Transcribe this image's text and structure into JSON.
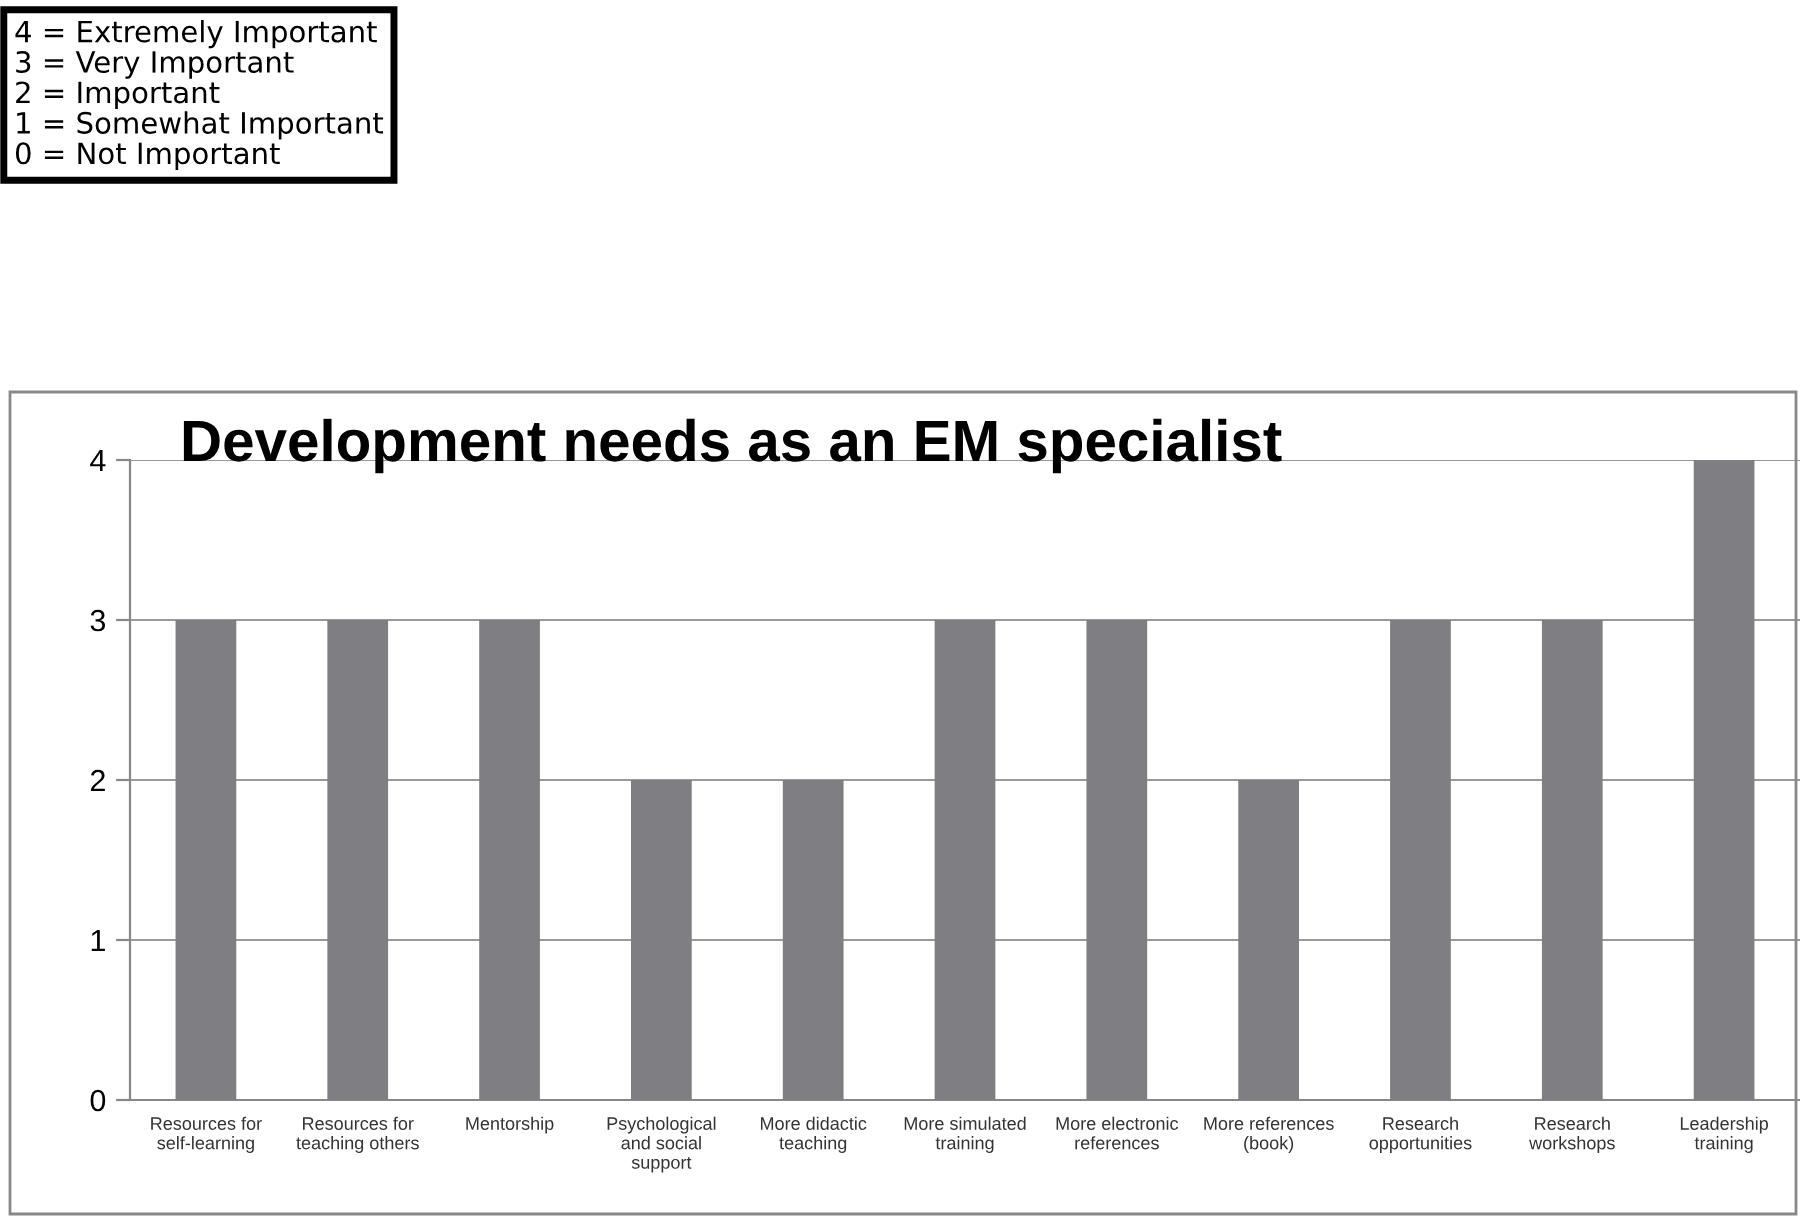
{
  "chart_data": {
    "type": "bar",
    "title": "Development needs as an EM specialist",
    "categories": [
      "Resources for\nself-learning",
      "Resources for\nteaching others",
      "Mentorship",
      "Psychological\nand social\nsupport",
      "More didactic\nteaching",
      "More simulated\ntraining",
      "More electronic\nreferences",
      "More references\n(book)",
      "Research\nopportunities",
      "Research\nworkshops",
      "Leadership\ntraining"
    ],
    "values": [
      3,
      3,
      3,
      2,
      2,
      3,
      3,
      2,
      3,
      3,
      4
    ],
    "color": "#7f7f83",
    "ylim": [
      0,
      4
    ],
    "yticks": [
      0,
      1,
      2,
      3,
      4
    ],
    "grid": "y",
    "annotations": [
      "4 = Extremely Important\n3 = Very Important\n2 = Important\n1 = Somewhat Important\n0 = Not Important"
    ]
  }
}
